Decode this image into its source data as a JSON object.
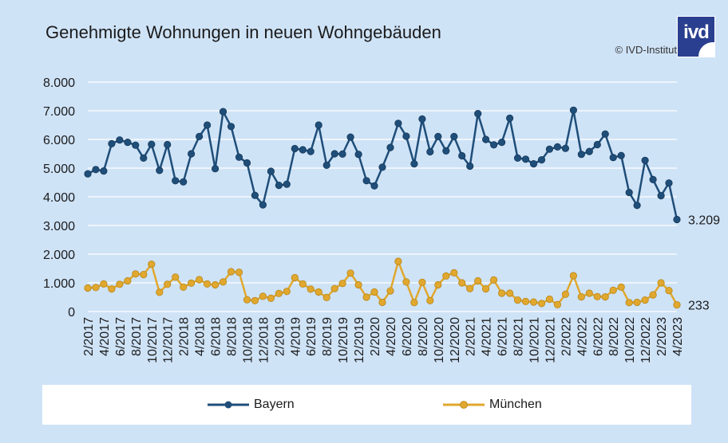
{
  "title": "Genehmigte Wohnungen in neuen Wohngebäuden",
  "copyright": "© IVD-Institut",
  "logo_text": "ivd",
  "colors": {
    "background": "#cfe3f7",
    "bayern": "#1f4e79",
    "muenchen": "#e0a82e",
    "logo": "#2a3f8f"
  },
  "chart_data": {
    "type": "line",
    "title": "Genehmigte Wohnungen in neuen Wohngebäuden",
    "xlabel": "",
    "ylabel": "",
    "ylim": [
      0,
      8000
    ],
    "yticks": [
      "0",
      "1.000",
      "2.000",
      "3.000",
      "4.000",
      "5.000",
      "6.000",
      "7.000",
      "8.000"
    ],
    "grid": true,
    "legend_position": "bottom",
    "x": [
      "2/2017",
      "3/2017",
      "4/2017",
      "5/2017",
      "6/2017",
      "7/2017",
      "8/2017",
      "9/2017",
      "10/2017",
      "11/2017",
      "12/2017",
      "1/2018",
      "2/2018",
      "3/2018",
      "4/2018",
      "5/2018",
      "6/2018",
      "7/2018",
      "8/2018",
      "9/2018",
      "10/2018",
      "11/2018",
      "12/2018",
      "1/2019",
      "2/2019",
      "3/2019",
      "4/2019",
      "5/2019",
      "6/2019",
      "7/2019",
      "8/2019",
      "9/2019",
      "10/2019",
      "11/2019",
      "12/2019",
      "1/2020",
      "2/2020",
      "3/2020",
      "4/2020",
      "5/2020",
      "6/2020",
      "7/2020",
      "8/2020",
      "9/2020",
      "10/2020",
      "11/2020",
      "12/2020",
      "1/2021",
      "2/2021",
      "3/2021",
      "4/2021",
      "5/2021",
      "6/2021",
      "7/2021",
      "8/2021",
      "9/2021",
      "10/2021",
      "11/2021",
      "12/2021",
      "1/2022",
      "2/2022",
      "3/2022",
      "4/2022",
      "5/2022",
      "6/2022",
      "7/2022",
      "8/2022",
      "9/2022",
      "10/2022",
      "11/2022",
      "12/2022",
      "1/2023",
      "2/2023",
      "3/2023",
      "4/2023"
    ],
    "x_tick_labels": [
      "2/2017",
      "4/2017",
      "6/2017",
      "8/2017",
      "10/2017",
      "12/2017",
      "2/2018",
      "4/2018",
      "6/2018",
      "8/2018",
      "10/2018",
      "12/2018",
      "2/2019",
      "4/2019",
      "6/2019",
      "8/2019",
      "10/2019",
      "12/2019",
      "2/2020",
      "4/2020",
      "6/2020",
      "8/2020",
      "10/2020",
      "12/2020",
      "2/2021",
      "4/2021",
      "6/2021",
      "8/2021",
      "10/2021",
      "12/2021",
      "2/2022",
      "4/2022",
      "6/2022",
      "8/2022",
      "10/2022",
      "12/2022",
      "2/2023",
      "4/2023"
    ],
    "series": [
      {
        "name": "Bayern",
        "color": "#1f4e79",
        "end_label": "3.209",
        "values": [
          4800,
          4950,
          4900,
          5850,
          5980,
          5900,
          5800,
          5350,
          5830,
          4920,
          5820,
          4560,
          4520,
          5500,
          6100,
          6500,
          4980,
          6970,
          6450,
          5380,
          5180,
          4050,
          3720,
          4890,
          4400,
          4440,
          5680,
          5640,
          5580,
          6500,
          5100,
          5500,
          5490,
          6080,
          5480,
          4560,
          4380,
          5030,
          5720,
          6560,
          6110,
          5150,
          6710,
          5570,
          6100,
          5600,
          6100,
          5430,
          5070,
          6900,
          6000,
          5810,
          5900,
          6740,
          5350,
          5310,
          5150,
          5290,
          5660,
          5740,
          5690,
          7020,
          5480,
          5580,
          5820,
          6190,
          5370,
          5440,
          4150,
          3700,
          5270,
          4600,
          4040,
          4480,
          3209
        ]
      },
      {
        "name": "München",
        "color": "#e0a82e",
        "end_label": "233",
        "values": [
          820,
          840,
          960,
          790,
          950,
          1070,
          1310,
          1290,
          1650,
          670,
          950,
          1200,
          850,
          990,
          1110,
          960,
          930,
          1030,
          1390,
          1370,
          410,
          380,
          530,
          460,
          630,
          700,
          1180,
          960,
          780,
          680,
          490,
          800,
          980,
          1340,
          930,
          500,
          680,
          320,
          720,
          1750,
          1030,
          310,
          1020,
          380,
          930,
          1240,
          1350,
          1000,
          800,
          1070,
          790,
          1100,
          640,
          640,
          400,
          350,
          330,
          280,
          430,
          240,
          600,
          1250,
          510,
          640,
          520,
          510,
          740,
          850,
          310,
          320,
          400,
          580,
          1000,
          730,
          233
        ]
      }
    ]
  }
}
